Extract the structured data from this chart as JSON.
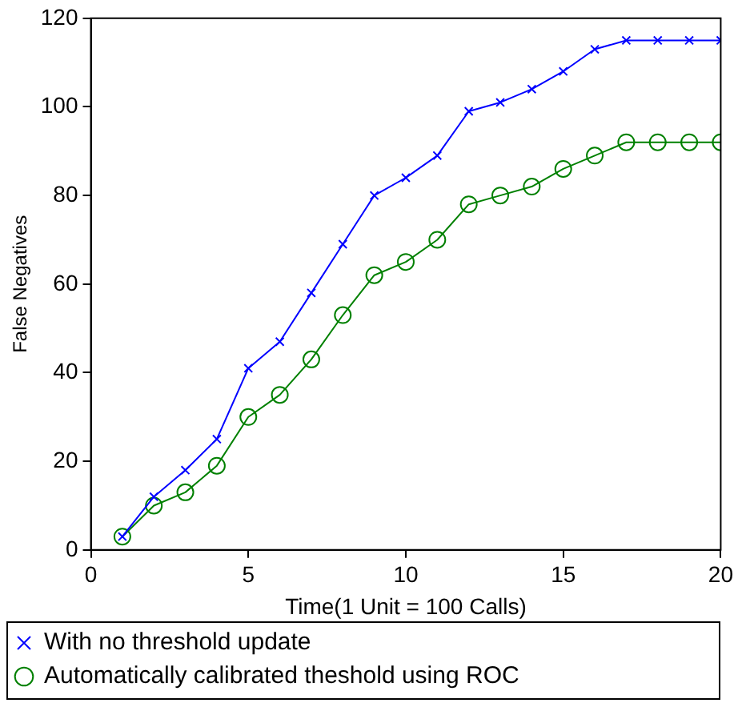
{
  "chart_data": {
    "type": "line",
    "xlabel": "Time(1 Unit = 100 Calls)",
    "ylabel": "False Negatives",
    "x": [
      1,
      2,
      3,
      4,
      5,
      6,
      7,
      8,
      9,
      10,
      11,
      12,
      13,
      14,
      15,
      16,
      17,
      18,
      19,
      20
    ],
    "series": [
      {
        "name": "With no threshold update",
        "color": "#0000ff",
        "marker": "cross",
        "values": [
          3,
          12,
          18,
          25,
          41,
          47,
          58,
          69,
          80,
          84,
          89,
          99,
          101,
          104,
          108,
          113,
          115,
          115,
          115,
          115
        ]
      },
      {
        "name": "Automatically calibrated theshold using ROC",
        "color": "#008000",
        "marker": "circle",
        "values": [
          3,
          10,
          13,
          19,
          30,
          35,
          43,
          53,
          62,
          65,
          70,
          78,
          80,
          82,
          86,
          89,
          92,
          92,
          92,
          92
        ]
      }
    ],
    "xlim": [
      0,
      20
    ],
    "xticks": [
      0,
      5,
      10,
      15,
      20
    ],
    "ylim": [
      0,
      120
    ],
    "yticks": [
      0,
      20,
      40,
      60,
      80,
      100,
      120
    ],
    "grid": false,
    "legend": "bottom",
    "line_style": "solid"
  }
}
